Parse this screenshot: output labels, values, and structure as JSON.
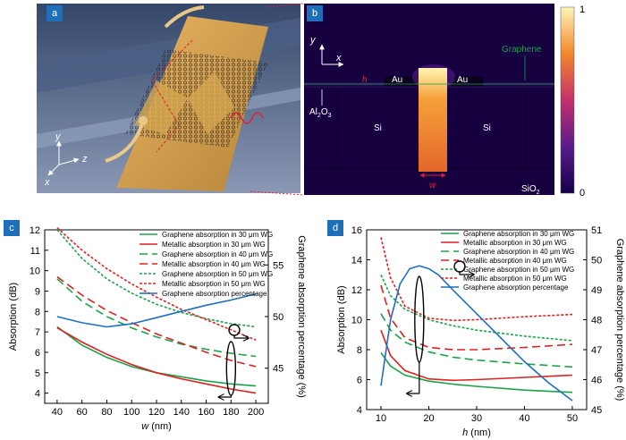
{
  "panels": {
    "a": {
      "letter": "a",
      "axes": {
        "y": "y",
        "x": "x",
        "z": "z"
      }
    },
    "b": {
      "letter": "b",
      "axes": {
        "y": "y",
        "x": "x"
      },
      "labels": {
        "graphene": "Graphene",
        "h": "h",
        "au_left": "Au",
        "au_right": "Au",
        "al2o3": "Al",
        "al2o3_sub1": "2",
        "al2o3_o": "O",
        "al2o3_sub2": "3",
        "si_left": "Si",
        "si_right": "Si",
        "w": "w",
        "sio2": "SiO",
        "sio2_sub": "2"
      },
      "colorbar": {
        "max": "1",
        "min": "0"
      }
    }
  },
  "chart_data": [
    {
      "panel": "c",
      "type": "line",
      "xlabel_italic": "w",
      "xlabel_unit": " (nm)",
      "ylabel": "Absorption (dB)",
      "y2label": "Graphene absorption percentage (%)",
      "xlim": [
        30,
        210
      ],
      "ylim": [
        3.5,
        12
      ],
      "y2lim": [
        41.6,
        58.4
      ],
      "xticks": [
        40,
        60,
        80,
        100,
        120,
        140,
        160,
        180,
        200
      ],
      "yticks": [
        4,
        5,
        6,
        7,
        8,
        9,
        10,
        11,
        12
      ],
      "y2ticks": [
        45,
        50,
        55
      ],
      "series": [
        {
          "name": "Graphene absorption in 30 μm WG",
          "axis": "left",
          "color": "#1aa34a",
          "dash": "solid",
          "x": [
            40,
            60,
            80,
            100,
            120,
            140,
            160,
            180,
            200
          ],
          "y": [
            7.25,
            6.35,
            5.75,
            5.3,
            5.0,
            4.8,
            4.6,
            4.45,
            4.35
          ]
        },
        {
          "name": "Metallic absorption in 30 μm WG",
          "axis": "left",
          "color": "#e02020",
          "dash": "solid",
          "x": [
            40,
            60,
            80,
            100,
            120,
            140,
            160,
            180,
            200
          ],
          "y": [
            7.2,
            6.5,
            5.9,
            5.4,
            5.0,
            4.7,
            4.45,
            4.2,
            4.0
          ]
        },
        {
          "name": "Graphene absorption in 40 μm WG",
          "axis": "left",
          "color": "#1aa34a",
          "dash": "long",
          "x": [
            40,
            60,
            80,
            100,
            120,
            140,
            160,
            180,
            200
          ],
          "y": [
            9.6,
            8.5,
            7.75,
            7.2,
            6.75,
            6.4,
            6.15,
            5.95,
            5.8
          ]
        },
        {
          "name": "Metallic absorption in 40 μm WG",
          "axis": "left",
          "color": "#e02020",
          "dash": "long",
          "x": [
            40,
            60,
            80,
            100,
            120,
            140,
            160,
            180,
            200
          ],
          "y": [
            9.7,
            8.8,
            8.05,
            7.45,
            6.9,
            6.45,
            6.0,
            5.6,
            5.3
          ]
        },
        {
          "name": "Graphene absorption in 50 μm WG",
          "axis": "left",
          "color": "#1aa34a",
          "dash": "short",
          "x": [
            40,
            60,
            80,
            100,
            120,
            140,
            160,
            180,
            200
          ],
          "y": [
            12.0,
            10.6,
            9.6,
            8.9,
            8.35,
            7.95,
            7.65,
            7.4,
            7.25
          ]
        },
        {
          "name": "Metallic absorption in 50 μm WG",
          "axis": "left",
          "color": "#e02020",
          "dash": "short",
          "x": [
            40,
            60,
            80,
            100,
            120,
            140,
            160,
            180,
            200
          ],
          "y": [
            12.1,
            11.0,
            10.1,
            9.35,
            8.7,
            8.1,
            7.6,
            7.1,
            6.6
          ]
        },
        {
          "name": "Graphene absorption percentage",
          "axis": "right",
          "color": "#1f6fc0",
          "dash": "solid",
          "x": [
            40,
            60,
            80,
            100,
            120,
            140,
            160,
            180,
            200
          ],
          "y": [
            50.0,
            49.4,
            49.0,
            49.3,
            49.9,
            50.5,
            51.1,
            51.6,
            52.2
          ]
        }
      ],
      "annotations": {
        "ellipse_near_x": 180
      }
    },
    {
      "panel": "d",
      "type": "line",
      "xlabel_italic": "h",
      "xlabel_unit": " (nm)",
      "ylabel": "Absorption (dB)",
      "y2label": "Graphene absorption percentage (%)",
      "xlim": [
        7,
        53
      ],
      "ylim": [
        4,
        16
      ],
      "y2lim": [
        45,
        51
      ],
      "xticks": [
        10,
        20,
        30,
        40,
        50
      ],
      "yticks": [
        4,
        6,
        8,
        10,
        12,
        14,
        16
      ],
      "y2ticks": [
        45,
        46,
        47,
        48,
        49,
        50,
        51
      ],
      "series": [
        {
          "name": "Graphene absorption in 30 μm WG",
          "axis": "left",
          "color": "#1aa34a",
          "dash": "solid",
          "x": [
            10,
            12,
            15,
            20,
            25,
            30,
            40,
            50
          ],
          "y": [
            7.8,
            6.9,
            6.3,
            5.9,
            5.7,
            5.55,
            5.3,
            5.15
          ]
        },
        {
          "name": "Metallic absorption in 30 μm WG",
          "axis": "left",
          "color": "#e02020",
          "dash": "solid",
          "x": [
            10,
            12,
            15,
            20,
            25,
            30,
            40,
            50
          ],
          "y": [
            9.3,
            7.6,
            6.6,
            6.05,
            5.95,
            6.0,
            6.15,
            6.3
          ]
        },
        {
          "name": "Graphene absorption in 40 μm WG",
          "axis": "left",
          "color": "#1aa34a",
          "dash": "long",
          "x": [
            10,
            12,
            15,
            20,
            25,
            30,
            40,
            50
          ],
          "y": [
            10.4,
            9.3,
            8.5,
            7.85,
            7.5,
            7.3,
            7.05,
            6.85
          ]
        },
        {
          "name": "Metallic absorption in 40 μm WG",
          "axis": "left",
          "color": "#e02020",
          "dash": "long",
          "x": [
            10,
            12,
            15,
            20,
            25,
            30,
            40,
            50
          ],
          "y": [
            12.3,
            10.1,
            8.8,
            8.15,
            8.0,
            8.0,
            8.15,
            8.35
          ]
        },
        {
          "name": "Graphene absorption in 50 μm WG",
          "axis": "left",
          "color": "#1aa34a",
          "dash": "short",
          "x": [
            10,
            12,
            15,
            20,
            25,
            30,
            40,
            50
          ],
          "y": [
            13.0,
            11.6,
            10.7,
            10.0,
            9.6,
            9.3,
            8.9,
            8.6
          ]
        },
        {
          "name": "Metallic absorption in 50 μm WG",
          "axis": "left",
          "color": "#e02020",
          "dash": "short",
          "x": [
            10,
            12,
            15,
            20,
            25,
            30,
            40,
            50
          ],
          "y": [
            15.5,
            12.8,
            10.9,
            10.1,
            9.95,
            10.0,
            10.2,
            10.35
          ]
        },
        {
          "name": "Graphene absorption percentage",
          "axis": "right",
          "color": "#1f6fc0",
          "dash": "solid",
          "x": [
            10,
            12,
            14,
            16,
            18,
            20,
            22,
            25,
            30,
            35,
            40,
            45,
            50
          ],
          "y": [
            45.8,
            48.0,
            49.2,
            49.7,
            49.8,
            49.7,
            49.5,
            49.0,
            48.2,
            47.4,
            46.6,
            45.9,
            45.3
          ]
        }
      ],
      "annotations": {
        "ellipse_near_x": 18
      }
    }
  ]
}
